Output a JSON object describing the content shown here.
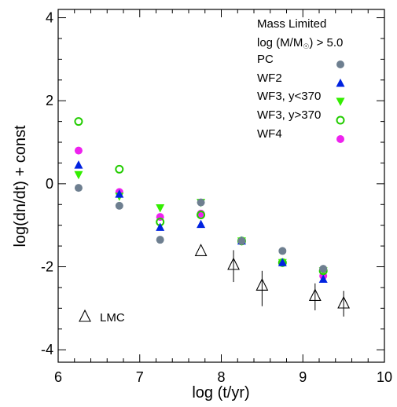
{
  "chart_data": {
    "type": "scatter",
    "title": "",
    "xlabel": "log (t/yr)",
    "ylabel": "log(dn/dt) + const",
    "xlim": [
      6,
      10
    ],
    "ylim": [
      -4.3,
      4.2
    ],
    "xticks": [
      6,
      7,
      8,
      9,
      10
    ],
    "yticks": [
      -4,
      -2,
      0,
      2,
      4
    ],
    "x_tick_labels": [
      "6",
      "7",
      "8",
      "9",
      "10"
    ],
    "y_tick_labels": [
      "-4",
      "-2",
      "0",
      "2",
      "4"
    ],
    "grid": false,
    "legend_placement": "top-right",
    "legend_header": {
      "line1": "Mass Limited",
      "line2_prefix": "log (M/M",
      "line2_sub": "☉",
      "line2_suffix": ") > 5.0"
    },
    "series": [
      {
        "name": "PC",
        "marker": "filled-circle",
        "color": "#6e7f90",
        "points": [
          {
            "x": 6.25,
            "y": -0.1
          },
          {
            "x": 6.75,
            "y": -0.53
          },
          {
            "x": 7.25,
            "y": -1.35
          },
          {
            "x": 7.75,
            "y": -0.45
          },
          {
            "x": 8.25,
            "y": -1.38
          },
          {
            "x": 8.75,
            "y": -1.62
          },
          {
            "x": 9.25,
            "y": -2.05
          }
        ]
      },
      {
        "name": "WF2",
        "marker": "filled-triangle",
        "color": "#0022e0",
        "points": [
          {
            "x": 6.25,
            "y": 0.45
          },
          {
            "x": 6.75,
            "y": -0.25
          },
          {
            "x": 7.25,
            "y": -1.05
          },
          {
            "x": 7.75,
            "y": -0.98
          },
          {
            "x": 8.25,
            "y": -1.38
          },
          {
            "x": 8.75,
            "y": -1.9
          },
          {
            "x": 9.25,
            "y": -2.3
          }
        ]
      },
      {
        "name": "WF3, y<370",
        "marker": "filled-triangle-down",
        "color": "#33ee00",
        "points": [
          {
            "x": 6.25,
            "y": 0.22
          },
          {
            "x": 6.75,
            "y": -0.3
          },
          {
            "x": 7.25,
            "y": -0.58
          },
          {
            "x": 7.75,
            "y": -0.45
          },
          {
            "x": 8.25,
            "y": -1.38
          },
          {
            "x": 8.75,
            "y": -1.9
          },
          {
            "x": 9.25,
            "y": -2.1
          }
        ]
      },
      {
        "name": "WF3, y>370",
        "marker": "open-circle",
        "color": "#22cc00",
        "points": [
          {
            "x": 6.25,
            "y": 1.5
          },
          {
            "x": 6.75,
            "y": 0.35
          },
          {
            "x": 7.25,
            "y": -0.92
          },
          {
            "x": 7.75,
            "y": -0.75
          },
          {
            "x": 8.25,
            "y": -1.38
          },
          {
            "x": 8.75,
            "y": -1.9
          },
          {
            "x": 9.25,
            "y": -2.1
          }
        ]
      },
      {
        "name": "WF4",
        "marker": "filled-circle",
        "color": "#ee22ee",
        "points": [
          {
            "x": 6.25,
            "y": 0.8
          },
          {
            "x": 6.75,
            "y": -0.2
          },
          {
            "x": 7.25,
            "y": -0.8
          },
          {
            "x": 7.75,
            "y": -0.72
          },
          {
            "x": 8.25,
            "y": -1.38
          },
          {
            "x": 8.75,
            "y": -1.9
          },
          {
            "x": 9.25,
            "y": -2.22
          }
        ]
      },
      {
        "name": "LMC",
        "marker": "open-triangle",
        "color": "#000000",
        "points": [
          {
            "x": 7.75,
            "y": -1.62,
            "yerr": [
              0,
              0
            ]
          },
          {
            "x": 8.15,
            "y": -1.95,
            "yerr": [
              0.42,
              0.35
            ]
          },
          {
            "x": 8.5,
            "y": -2.45,
            "yerr": [
              0.5,
              0.35
            ]
          },
          {
            "x": 9.15,
            "y": -2.7,
            "yerr": [
              0.35,
              0.3
            ]
          },
          {
            "x": 9.5,
            "y": -2.88,
            "yerr": [
              0.32,
              0.3
            ]
          }
        ]
      }
    ]
  }
}
